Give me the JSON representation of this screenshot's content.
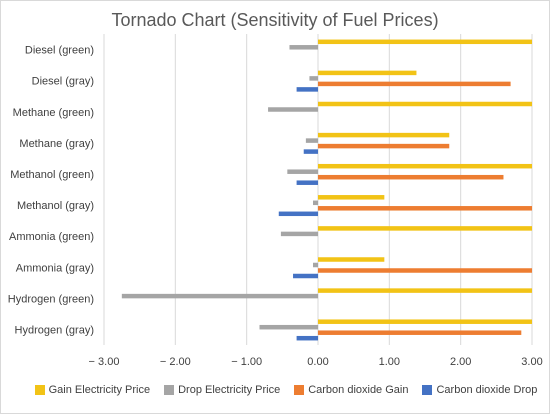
{
  "chart_data": {
    "type": "bar",
    "orientation": "horizontal",
    "title": "Tornado Chart (Sensitivity of Fuel Prices)",
    "categories": [
      "Diesel (green)",
      "Diesel (gray)",
      "Methane (green)",
      "Methane (gray)",
      "Methanol (green)",
      "Methanol (gray)",
      "Ammonia (green)",
      "Ammonia (gray)",
      "Hydrogen (green)",
      "Hydrogen (gray)"
    ],
    "xlim": [
      -3,
      3
    ],
    "xticks": [
      "− 3.00",
      "− 2.00",
      "− 1.00",
      "0.00",
      "1.00",
      "2.00",
      "3.00"
    ],
    "grid": true,
    "legend_position": "bottom",
    "series": [
      {
        "name": "Gain Electricity Price",
        "color": "#F2C316",
        "values": [
          3.0,
          1.38,
          3.0,
          1.84,
          3.0,
          0.93,
          3.0,
          0.93,
          3.0,
          3.0
        ]
      },
      {
        "name": "Drop Electricity Price",
        "color": "#A5A5A5",
        "values": [
          -0.4,
          -0.12,
          -0.7,
          -0.17,
          -0.43,
          -0.07,
          -0.52,
          -0.07,
          -2.75,
          -0.82
        ]
      },
      {
        "name": "Carbon dioxide Gain",
        "color": "#ED7D31",
        "values": [
          null,
          2.7,
          null,
          1.84,
          2.6,
          3.0,
          null,
          3.0,
          null,
          2.85
        ]
      },
      {
        "name": "Carbon dioxide Drop",
        "color": "#4472C4",
        "values": [
          null,
          -0.3,
          null,
          -0.2,
          -0.3,
          -0.55,
          null,
          -0.35,
          null,
          -0.3
        ]
      }
    ]
  }
}
